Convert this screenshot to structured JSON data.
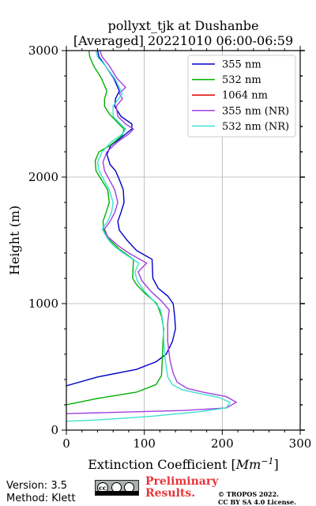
{
  "chart_data": {
    "type": "line",
    "title_line1": "pollyxt_tjk at Dushanbe",
    "title_line2": "[Averaged] 20221010 06:00-06:59",
    "xlabel": "Extinction Coefficient [",
    "xlabel_unit": "Mm",
    "xlabel_exp": "−1",
    "xlabel_end": "]",
    "ylabel": "Height (m)",
    "xlim": [
      0,
      300
    ],
    "ylim": [
      0,
      3000
    ],
    "x_ticks": [
      0,
      100,
      200,
      300
    ],
    "y_ticks": [
      0,
      1000,
      2000,
      3000
    ],
    "grid": true,
    "legend_position": "top-right",
    "series": [
      {
        "name": "355 nm",
        "color": "#0000cc",
        "points": [
          [
            0,
            350
          ],
          [
            40,
            420
          ],
          [
            90,
            480
          ],
          [
            115,
            540
          ],
          [
            128,
            600
          ],
          [
            136,
            700
          ],
          [
            140,
            800
          ],
          [
            139,
            900
          ],
          [
            137,
            1000
          ],
          [
            130,
            1060
          ],
          [
            118,
            1120
          ],
          [
            111,
            1200
          ],
          [
            110,
            1350
          ],
          [
            90,
            1420
          ],
          [
            78,
            1500
          ],
          [
            68,
            1580
          ],
          [
            66,
            1650
          ],
          [
            70,
            1720
          ],
          [
            74,
            1800
          ],
          [
            73,
            1900
          ],
          [
            68,
            1980
          ],
          [
            63,
            2050
          ],
          [
            56,
            2100
          ],
          [
            52,
            2180
          ],
          [
            57,
            2250
          ],
          [
            68,
            2300
          ],
          [
            84,
            2380
          ],
          [
            84,
            2420
          ],
          [
            70,
            2480
          ],
          [
            62,
            2560
          ],
          [
            63,
            2620
          ],
          [
            68,
            2680
          ],
          [
            61,
            2780
          ],
          [
            50,
            2880
          ],
          [
            42,
            2950
          ],
          [
            40,
            3000
          ]
        ]
      },
      {
        "name": "532 nm",
        "color": "#00b000",
        "points": [
          [
            0,
            200
          ],
          [
            40,
            250
          ],
          [
            90,
            300
          ],
          [
            115,
            360
          ],
          [
            122,
            430
          ],
          [
            123,
            550
          ],
          [
            124,
            700
          ],
          [
            125,
            800
          ],
          [
            122,
            900
          ],
          [
            116,
            1000
          ],
          [
            101,
            1080
          ],
          [
            90,
            1150
          ],
          [
            85,
            1200
          ],
          [
            86,
            1350
          ],
          [
            68,
            1430
          ],
          [
            56,
            1500
          ],
          [
            48,
            1580
          ],
          [
            47,
            1650
          ],
          [
            51,
            1720
          ],
          [
            55,
            1800
          ],
          [
            53,
            1900
          ],
          [
            45,
            1980
          ],
          [
            38,
            2050
          ],
          [
            37,
            2130
          ],
          [
            42,
            2200
          ],
          [
            56,
            2250
          ],
          [
            72,
            2330
          ],
          [
            74,
            2380
          ],
          [
            66,
            2430
          ],
          [
            55,
            2500
          ],
          [
            49,
            2560
          ],
          [
            49,
            2620
          ],
          [
            52,
            2680
          ],
          [
            45,
            2780
          ],
          [
            35,
            2880
          ],
          [
            30,
            2950
          ],
          [
            29,
            3000
          ]
        ]
      },
      {
        "name": "1064 nm",
        "color": "#dd0000",
        "points": []
      },
      {
        "name": "355 nm (NR)",
        "color": "#a040e0",
        "points": [
          [
            0,
            130
          ],
          [
            60,
            140
          ],
          [
            150,
            155
          ],
          [
            205,
            175
          ],
          [
            218,
            220
          ],
          [
            205,
            265
          ],
          [
            175,
            300
          ],
          [
            155,
            330
          ],
          [
            142,
            380
          ],
          [
            137,
            450
          ],
          [
            133,
            550
          ],
          [
            130,
            700
          ],
          [
            130,
            850
          ],
          [
            132,
            950
          ],
          [
            122,
            1020
          ],
          [
            108,
            1100
          ],
          [
            97,
            1180
          ],
          [
            92,
            1250
          ],
          [
            103,
            1320
          ],
          [
            80,
            1400
          ],
          [
            66,
            1460
          ],
          [
            53,
            1530
          ],
          [
            49,
            1590
          ],
          [
            56,
            1650
          ],
          [
            62,
            1720
          ],
          [
            66,
            1800
          ],
          [
            62,
            1900
          ],
          [
            55,
            1980
          ],
          [
            49,
            2050
          ],
          [
            47,
            2120
          ],
          [
            52,
            2200
          ],
          [
            66,
            2280
          ],
          [
            80,
            2340
          ],
          [
            86,
            2380
          ],
          [
            76,
            2420
          ],
          [
            66,
            2480
          ],
          [
            64,
            2560
          ],
          [
            72,
            2620
          ],
          [
            68,
            2660
          ],
          [
            76,
            2710
          ],
          [
            65,
            2780
          ],
          [
            55,
            2880
          ],
          [
            46,
            2950
          ],
          [
            43,
            3000
          ]
        ]
      },
      {
        "name": "532 nm (NR)",
        "color": "#40e0d0",
        "points": [
          [
            0,
            70
          ],
          [
            40,
            80
          ],
          [
            110,
            110
          ],
          [
            170,
            145
          ],
          [
            205,
            175
          ],
          [
            210,
            220
          ],
          [
            195,
            260
          ],
          [
            170,
            290
          ],
          [
            148,
            320
          ],
          [
            136,
            360
          ],
          [
            130,
            420
          ],
          [
            127,
            550
          ],
          [
            125,
            700
          ],
          [
            124,
            850
          ],
          [
            121,
            950
          ],
          [
            112,
            1020
          ],
          [
            100,
            1100
          ],
          [
            91,
            1180
          ],
          [
            88,
            1250
          ],
          [
            93,
            1320
          ],
          [
            73,
            1400
          ],
          [
            60,
            1460
          ],
          [
            52,
            1520
          ],
          [
            46,
            1590
          ],
          [
            53,
            1650
          ],
          [
            58,
            1720
          ],
          [
            60,
            1800
          ],
          [
            55,
            1900
          ],
          [
            48,
            1980
          ],
          [
            42,
            2050
          ],
          [
            40,
            2120
          ],
          [
            46,
            2200
          ],
          [
            58,
            2280
          ],
          [
            72,
            2340
          ],
          [
            76,
            2380
          ],
          [
            68,
            2430
          ],
          [
            60,
            2480
          ],
          [
            60,
            2560
          ],
          [
            67,
            2620
          ],
          [
            72,
            2660
          ],
          [
            68,
            2710
          ],
          [
            62,
            2780
          ],
          [
            50,
            2880
          ],
          [
            40,
            2950
          ],
          [
            38,
            3000
          ]
        ]
      }
    ]
  },
  "footer": {
    "version": "Version: 3.5",
    "method": "Method: Klett",
    "cc_symbol": "cc",
    "preliminary_line1": "Preliminary",
    "preliminary_line2": "Results.",
    "copyright_line1": "© TROPOS 2022.",
    "copyright_line2": "CC BY SA 4.0 License."
  }
}
